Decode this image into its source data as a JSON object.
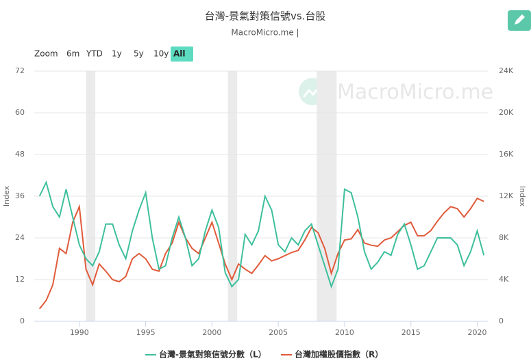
{
  "chart_data": {
    "type": "line",
    "title": "台灣-景氣對策信號vs.台股",
    "subtitle": "MacroMicro.me |",
    "watermark": "MacroMicro.me",
    "range_buttons": {
      "label": "Zoom",
      "options": [
        "6m",
        "YTD",
        "1y",
        "5y",
        "10y",
        "All"
      ],
      "active": 5
    },
    "y_label": "Index",
    "y2_label": "Index",
    "x": [
      1987.0,
      1987.5,
      1988.0,
      1988.5,
      1989.0,
      1989.5,
      1990.0,
      1990.5,
      1991.0,
      1991.5,
      1992.0,
      1992.5,
      1993.0,
      1993.5,
      1994.0,
      1994.5,
      1995.0,
      1995.5,
      1996.0,
      1996.5,
      1997.0,
      1997.5,
      1998.0,
      1998.5,
      1999.0,
      1999.5,
      2000.0,
      2000.5,
      2001.0,
      2001.5,
      2002.0,
      2002.5,
      2003.0,
      2003.5,
      2004.0,
      2004.5,
      2005.0,
      2005.5,
      2006.0,
      2006.5,
      2007.0,
      2007.5,
      2008.0,
      2008.5,
      2009.0,
      2009.5,
      2010.0,
      2010.5,
      2011.0,
      2011.5,
      2012.0,
      2012.5,
      2013.0,
      2013.5,
      2014.0,
      2014.5,
      2015.0,
      2015.5,
      2016.0,
      2016.5,
      2017.0,
      2017.5,
      2018.0,
      2018.5,
      2019.0,
      2019.5,
      2020.0,
      2020.5
    ],
    "series": [
      {
        "name": "台灣-景氣對策信號分數（L）",
        "color": "#3dbf9c",
        "axis": "y",
        "values": [
          36,
          40,
          33,
          30,
          38,
          30,
          22,
          18,
          16,
          20,
          28,
          28,
          22,
          18,
          26,
          32,
          37,
          24,
          15,
          16,
          24,
          30,
          24,
          16,
          18,
          26,
          32,
          27,
          14,
          10,
          12,
          25,
          22,
          26,
          36,
          32,
          22,
          20,
          24,
          22,
          26,
          28,
          22,
          16,
          10,
          15,
          38,
          37,
          30,
          20,
          15,
          17,
          20,
          19,
          25,
          28,
          22,
          15,
          16,
          20,
          24,
          24,
          24,
          22,
          16,
          20,
          26,
          19
        ]
      },
      {
        "name": "台灣加權股價指數（R）",
        "color": "#e05a3a",
        "axis": "y2",
        "values": [
          1200,
          2000,
          3500,
          7000,
          6500,
          9500,
          11000,
          5000,
          3500,
          5500,
          4800,
          4000,
          3800,
          4300,
          6000,
          6500,
          6000,
          5000,
          4800,
          6500,
          7500,
          9500,
          8000,
          7000,
          6500,
          8000,
          9500,
          7500,
          5500,
          4000,
          5500,
          5000,
          4600,
          5400,
          6300,
          5800,
          6000,
          6300,
          6600,
          6800,
          7800,
          9000,
          8500,
          7000,
          4600,
          6500,
          7800,
          7900,
          8800,
          7500,
          7300,
          7200,
          7800,
          8000,
          8600,
          9200,
          9500,
          8200,
          8200,
          8700,
          9600,
          10400,
          11000,
          10800,
          10000,
          10800,
          11800,
          11500
        ]
      }
    ],
    "shaded_periods": [
      [
        1990.5,
        1991.2
      ],
      [
        2001.2,
        2001.9
      ],
      [
        2007.9,
        2009.4
      ]
    ],
    "xlim": [
      1986.6,
      2020.8
    ],
    "xticks": [
      1990,
      1995,
      2000,
      2005,
      2010,
      2015,
      2020
    ],
    "ylim": [
      0,
      72
    ],
    "yticks": [
      0,
      12,
      24,
      36,
      48,
      60,
      72
    ],
    "y2lim": [
      0,
      24000
    ],
    "y2ticks": [
      0,
      {
        "value": 4000,
        "label": "4K"
      },
      {
        "value": 8000,
        "label": "8K"
      },
      {
        "value": 12000,
        "label": "12K"
      },
      {
        "value": 16000,
        "label": "16K"
      },
      {
        "value": 20000,
        "label": "20K"
      },
      {
        "value": 24000,
        "label": "24K"
      }
    ],
    "grid": true,
    "legend": "bottom"
  }
}
